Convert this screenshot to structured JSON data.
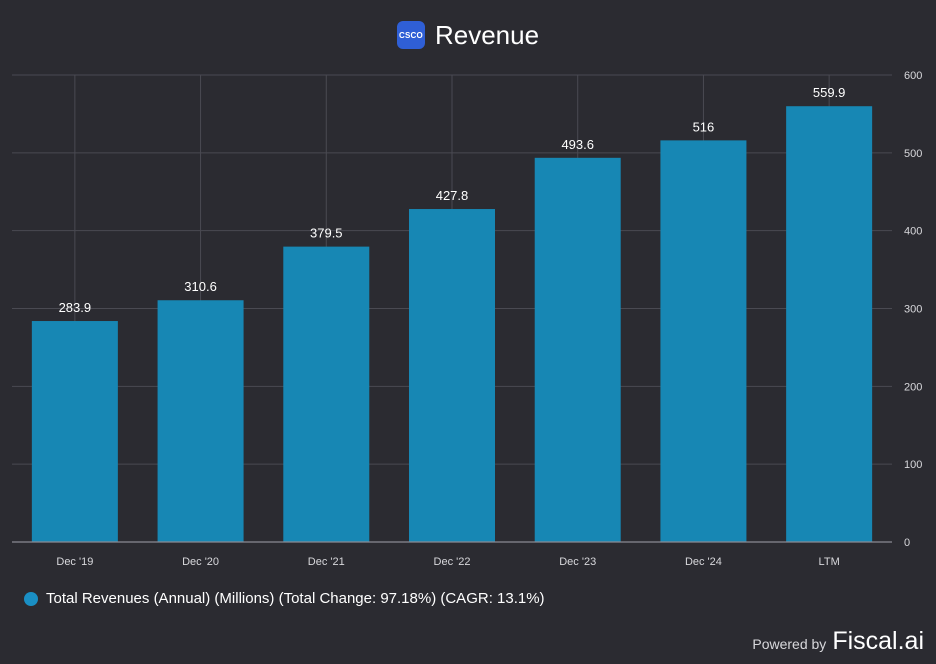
{
  "header": {
    "logo_text": "CSCO",
    "title": "Revenue"
  },
  "chart_data": {
    "type": "bar",
    "categories": [
      "Dec '19",
      "Dec '20",
      "Dec '21",
      "Dec '22",
      "Dec '23",
      "Dec '24",
      "LTM"
    ],
    "series": [
      {
        "name": "Total Revenues (Annual) (Millions) (Total Change: 97.18%) (CAGR: 13.1%)",
        "values": [
          283.9,
          310.6,
          379.5,
          427.8,
          493.6,
          516,
          559.9
        ],
        "labels": [
          "283.9",
          "310.6",
          "379.5",
          "427.8",
          "493.6",
          "516",
          "559.9"
        ]
      }
    ],
    "ylim": [
      0,
      600
    ],
    "yticks": [
      0,
      100,
      200,
      300,
      400,
      500,
      600
    ],
    "y_axis_side": "right",
    "grid": true,
    "legend_position": "bottom-left",
    "colors": {
      "bar": "#1787b4",
      "grid": "#4a4a52",
      "axis_text": "#d8d8dc",
      "label": "#ffffff",
      "background": "#2b2b31"
    }
  },
  "legend": {
    "label": "Total Revenues (Annual) (Millions) (Total Change: 97.18%) (CAGR: 13.1%)",
    "color": "#1a8fc4"
  },
  "footer": {
    "powered_by": "Powered by",
    "brand": "Fiscal.ai"
  }
}
